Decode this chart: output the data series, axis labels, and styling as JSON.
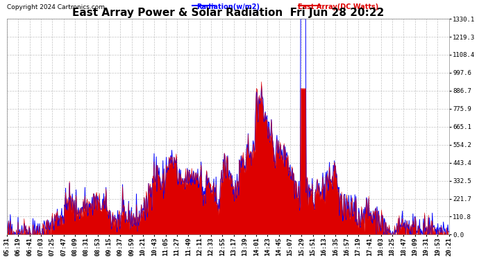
{
  "title": "East Array Power & Solar Radiation  Fri Jun 28 20:22",
  "copyright": "Copyright 2024 Cartronics.com",
  "legend_radiation": "Radiation(w/m2)",
  "legend_east_array": "East Array(DC Watts)",
  "radiation_color": "#0000ff",
  "east_array_color": "#dd0000",
  "ymax": 1330.1,
  "ymin": 0.0,
  "yticks": [
    0.0,
    110.8,
    221.7,
    332.5,
    443.4,
    554.2,
    665.1,
    775.9,
    886.7,
    997.6,
    1108.4,
    1219.3,
    1330.1
  ],
  "background_color": "#ffffff",
  "grid_color": "#aaaaaa",
  "title_fontsize": 11,
  "label_fontsize": 7,
  "copyright_fontsize": 6.5,
  "tick_fontsize": 6.5,
  "time_labels": [
    "05:31",
    "06:19",
    "06:41",
    "07:03",
    "07:25",
    "07:47",
    "08:09",
    "08:31",
    "08:53",
    "09:15",
    "09:37",
    "09:59",
    "10:21",
    "10:43",
    "11:05",
    "11:27",
    "11:49",
    "12:11",
    "12:33",
    "12:55",
    "13:17",
    "13:39",
    "14:01",
    "14:23",
    "14:45",
    "15:07",
    "15:29",
    "15:51",
    "16:13",
    "16:35",
    "16:57",
    "17:19",
    "17:41",
    "18:03",
    "18:25",
    "18:47",
    "19:09",
    "19:31",
    "19:53",
    "20:21"
  ]
}
